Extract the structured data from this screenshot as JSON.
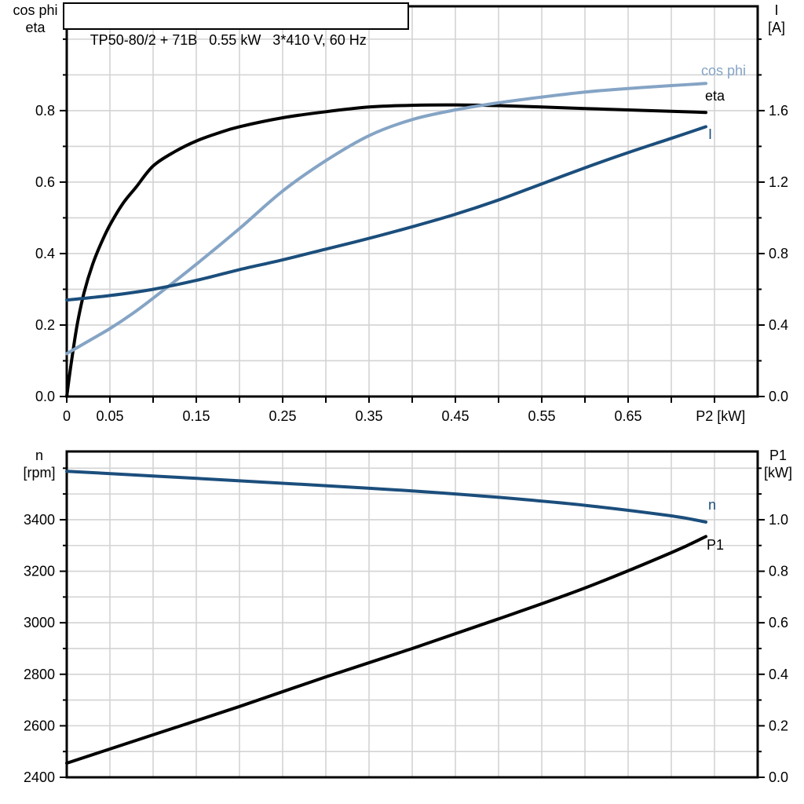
{
  "title_box": {
    "text": "TP50-80/2 + 71B   0.55 kW   3*410 V, 60 Hz"
  },
  "axis_corner_labels": {
    "top_chart_left": [
      "cos phi",
      "eta"
    ],
    "top_chart_right": [
      "I",
      "[A]"
    ],
    "bottom_chart_left": [
      "n",
      "[rpm]"
    ],
    "bottom_chart_right": [
      "P1",
      "[kW]"
    ]
  },
  "colors": {
    "curve_black": "#000000",
    "curve_dark_blue": "#1b4e7c",
    "curve_light_blue": "#85a4c5",
    "grid": "#d3d3d3",
    "frame": "#000000",
    "text": "#000000",
    "background": "#ffffff"
  },
  "chart_data": [
    {
      "id": "motor-performance-chart",
      "type": "line",
      "title": "TP50-80/2 + 71B 0.55 kW 3*410 V, 60 Hz",
      "grid": true,
      "legend_position": "labels-at-line-ends",
      "x_axis": {
        "label": "P2 [kW]",
        "min": 0,
        "max": 0.8,
        "grid_step": 0.05,
        "tick_step": 0.05,
        "tick_last": 0.75,
        "major_ticks": {
          "values": [
            0,
            0.05,
            0.15,
            0.25,
            0.35,
            0.45,
            0.55,
            0.65
          ],
          "labels": [
            "0",
            "0.05",
            "0.15",
            "0.25",
            "0.35",
            "0.45",
            "0.55",
            "0.65"
          ]
        },
        "label_at": 0.757
      },
      "y_left": {
        "name": "cos phi / eta",
        "min": 0,
        "max": 1.092,
        "grid_step": 0.1,
        "minor_tick_step": 0.1,
        "major_ticks": {
          "values": [
            0,
            0.2,
            0.4,
            0.6,
            0.8
          ],
          "labels": [
            "0.0",
            "0.2",
            "0.4",
            "0.6",
            "0.8"
          ]
        }
      },
      "y_right": {
        "name": "I [A]",
        "min": 0,
        "max": 2.184,
        "minor_tick_step": 0.2,
        "major_ticks": {
          "values": [
            0,
            0.4,
            0.8,
            1.2,
            1.6
          ],
          "labels": [
            "0.0",
            "0.4",
            "0.8",
            "1.2",
            "1.6"
          ]
        }
      },
      "series": [
        {
          "name": "eta",
          "axis": "left",
          "color": "#000000",
          "x": [
            0,
            0.005,
            0.012,
            0.02,
            0.03,
            0.04,
            0.05,
            0.065,
            0.08,
            0.1,
            0.125,
            0.15,
            0.175,
            0.2,
            0.25,
            0.3,
            0.35,
            0.4,
            0.45,
            0.5,
            0.55,
            0.6,
            0.65,
            0.7,
            0.74
          ],
          "y": [
            0,
            0.09,
            0.2,
            0.29,
            0.37,
            0.43,
            0.48,
            0.54,
            0.585,
            0.645,
            0.685,
            0.715,
            0.737,
            0.755,
            0.78,
            0.797,
            0.81,
            0.815,
            0.816,
            0.814,
            0.81,
            0.806,
            0.802,
            0.798,
            0.795
          ]
        },
        {
          "name": "cos phi",
          "axis": "left",
          "color": "#85a4c5",
          "x": [
            0,
            0.025,
            0.05,
            0.075,
            0.1,
            0.15,
            0.2,
            0.25,
            0.3,
            0.35,
            0.4,
            0.45,
            0.5,
            0.55,
            0.6,
            0.65,
            0.7,
            0.74
          ],
          "y": [
            0.12,
            0.155,
            0.19,
            0.23,
            0.275,
            0.37,
            0.47,
            0.575,
            0.66,
            0.73,
            0.775,
            0.802,
            0.822,
            0.838,
            0.852,
            0.862,
            0.87,
            0.876
          ]
        },
        {
          "name": "I",
          "axis": "right",
          "color": "#1b4e7c",
          "x": [
            0,
            0.05,
            0.1,
            0.15,
            0.2,
            0.25,
            0.3,
            0.35,
            0.4,
            0.45,
            0.5,
            0.55,
            0.6,
            0.65,
            0.7,
            0.74
          ],
          "y": [
            0.54,
            0.565,
            0.6,
            0.65,
            0.71,
            0.765,
            0.825,
            0.885,
            0.95,
            1.02,
            1.1,
            1.19,
            1.28,
            1.365,
            1.445,
            1.51
          ]
        }
      ]
    },
    {
      "id": "speed-power-chart",
      "type": "line",
      "title": "",
      "grid": true,
      "legend_position": "labels-at-line-ends",
      "x_axis": {
        "label": "",
        "min": 0,
        "max": 0.8,
        "grid_step": 0.05,
        "tick_step": null,
        "tick_last": null,
        "major_ticks": {
          "values": [],
          "labels": []
        },
        "label_at": null
      },
      "y_left": {
        "name": "n [rpm]",
        "min": 2400,
        "max": 3665,
        "grid_step": 100,
        "minor_tick_step": 100,
        "major_ticks": {
          "values": [
            2400,
            2600,
            2800,
            3000,
            3200,
            3400
          ],
          "labels": [
            "2400",
            "2600",
            "2800",
            "3000",
            "3200",
            "3400"
          ]
        }
      },
      "y_right": {
        "name": "P1 [kW]",
        "min": 0,
        "max": 1.265,
        "minor_tick_step": 0.1,
        "major_ticks": {
          "values": [
            0,
            0.2,
            0.4,
            0.6,
            0.8,
            1.0
          ],
          "labels": [
            "0.0",
            "0.2",
            "0.4",
            "0.6",
            "0.8",
            "1.0"
          ]
        }
      },
      "series": [
        {
          "name": "n",
          "axis": "left",
          "color": "#1b4e7c",
          "x": [
            0,
            0.1,
            0.2,
            0.3,
            0.4,
            0.5,
            0.6,
            0.7,
            0.74
          ],
          "y": [
            3588,
            3570,
            3551,
            3532,
            3512,
            3487,
            3456,
            3415,
            3391
          ]
        },
        {
          "name": "P1",
          "axis": "right",
          "color": "#000000",
          "x": [
            0,
            0.1,
            0.2,
            0.3,
            0.4,
            0.5,
            0.6,
            0.7,
            0.74
          ],
          "y": [
            0.055,
            0.165,
            0.275,
            0.39,
            0.5,
            0.615,
            0.735,
            0.872,
            0.935
          ]
        }
      ]
    }
  ]
}
